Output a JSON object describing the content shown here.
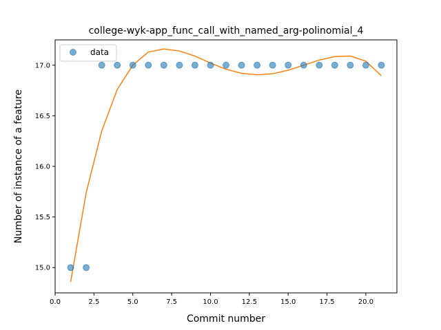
{
  "chart_data": {
    "type": "scatter",
    "title": "college-wyk-app_func_call_with_named_arg-polinomial_4",
    "xlabel": "Commit number",
    "ylabel": "Number of instance of a feature",
    "xlim": [
      0.0,
      22.0
    ],
    "ylim": [
      14.75,
      17.25
    ],
    "xticks": [
      0.0,
      2.5,
      5.0,
      7.5,
      10.0,
      12.5,
      15.0,
      17.5,
      20.0
    ],
    "xtick_labels": [
      "0.0",
      "2.5",
      "5.0",
      "7.5",
      "10.0",
      "12.5",
      "15.0",
      "17.5",
      "20.0"
    ],
    "yticks": [
      15.0,
      15.5,
      16.0,
      16.5,
      17.0
    ],
    "ytick_labels": [
      "15.0",
      "15.5",
      "16.0",
      "16.5",
      "17.0"
    ],
    "grid": false,
    "legend_position": "top-left",
    "series": [
      {
        "name": "data",
        "kind": "scatter",
        "color": "#1f77b4",
        "x": [
          1,
          2,
          3,
          4,
          5,
          6,
          7,
          8,
          9,
          10,
          11,
          12,
          13,
          14,
          15,
          16,
          17,
          18,
          19,
          20,
          21
        ],
        "y": [
          15,
          15,
          17,
          17,
          17,
          17,
          17,
          17,
          17,
          17,
          17,
          17,
          17,
          17,
          17,
          17,
          17,
          17,
          17,
          17,
          17
        ]
      },
      {
        "kind": "line",
        "color": "#ff7f0e",
        "x": [
          1,
          2,
          3,
          4,
          5,
          6,
          7,
          8,
          9,
          10,
          11,
          12,
          13,
          14,
          15,
          16,
          17,
          18,
          19,
          20,
          21
        ],
        "y": [
          14.86,
          15.74,
          16.35,
          16.76,
          17.0,
          17.13,
          17.16,
          17.14,
          17.09,
          17.02,
          16.96,
          16.92,
          16.905,
          16.915,
          16.95,
          17.0,
          17.05,
          17.085,
          17.09,
          17.04,
          16.895
        ]
      }
    ]
  }
}
